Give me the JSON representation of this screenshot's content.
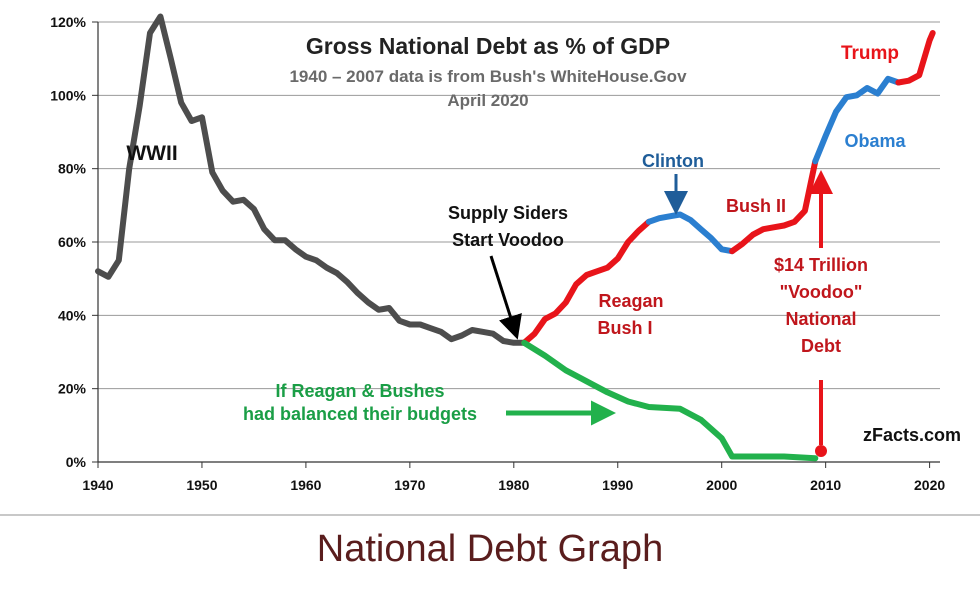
{
  "chart_data": {
    "type": "line",
    "title": "Gross National Debt  as % of GDP",
    "subtitle": "1940 – 2007 data is from Bush's WhiteHouse.Gov",
    "subtitle2": "April 2020",
    "xlabel": "",
    "ylabel": "",
    "xlim": [
      1940,
      2021
    ],
    "ylim": [
      0,
      120
    ],
    "x_ticks": [
      1940,
      1950,
      1960,
      1970,
      1980,
      1990,
      2000,
      2010,
      2020
    ],
    "x_tick_labels": [
      "1940",
      "1950",
      "1960",
      "1970",
      "1980",
      "1990",
      "2000",
      "2010",
      "2020"
    ],
    "y_ticks": [
      0,
      20,
      40,
      60,
      80,
      100,
      120
    ],
    "y_tick_labels": [
      "0%",
      "20%",
      "40%",
      "60%",
      "80%",
      "100%",
      "120%"
    ],
    "grid": "horizontal",
    "series": [
      {
        "color": "#4d4d4d",
        "points": [
          [
            1940,
            52
          ],
          [
            1941,
            50.5
          ],
          [
            1942,
            55
          ],
          [
            1943,
            80
          ],
          [
            1944,
            97
          ],
          [
            1945,
            117
          ],
          [
            1946,
            121.5
          ],
          [
            1947,
            110
          ],
          [
            1948,
            98
          ],
          [
            1949,
            93
          ],
          [
            1950,
            94
          ],
          [
            1951,
            79
          ],
          [
            1952,
            74
          ],
          [
            1953,
            71
          ],
          [
            1954,
            71.5
          ],
          [
            1955,
            69
          ],
          [
            1956,
            63.5
          ],
          [
            1957,
            60.5
          ],
          [
            1958,
            60.5
          ],
          [
            1959,
            58
          ],
          [
            1960,
            56
          ],
          [
            1961,
            55
          ],
          [
            1962,
            53
          ],
          [
            1963,
            51.5
          ],
          [
            1964,
            49
          ],
          [
            1965,
            46
          ],
          [
            1966,
            43.5
          ],
          [
            1967,
            41.5
          ],
          [
            1968,
            42
          ],
          [
            1969,
            38.5
          ],
          [
            1970,
            37.5
          ],
          [
            1971,
            37.5
          ],
          [
            1972,
            36.5
          ],
          [
            1973,
            35.5
          ],
          [
            1974,
            33.5
          ],
          [
            1975,
            34.5
          ],
          [
            1976,
            36
          ],
          [
            1977,
            35.5
          ],
          [
            1978,
            35
          ],
          [
            1979,
            33
          ],
          [
            1980,
            32.5
          ],
          [
            1981,
            32.5
          ]
        ]
      },
      {
        "color": "#e8141a",
        "points": [
          [
            1981,
            32.5
          ],
          [
            1982,
            35
          ],
          [
            1983,
            39
          ],
          [
            1984,
            40.5
          ],
          [
            1985,
            43.5
          ],
          [
            1986,
            48.5
          ],
          [
            1987,
            51
          ],
          [
            1988,
            52
          ],
          [
            1989,
            53
          ],
          [
            1990,
            55.5
          ],
          [
            1991,
            60
          ],
          [
            1992,
            63
          ],
          [
            1993,
            65.5
          ]
        ]
      },
      {
        "color": "#2b7fd0",
        "points": [
          [
            1993,
            65.5
          ],
          [
            1994,
            66.5
          ],
          [
            1995,
            67
          ],
          [
            1996,
            67.5
          ],
          [
            1997,
            66
          ],
          [
            1998,
            63.5
          ],
          [
            1999,
            61
          ],
          [
            2000,
            58
          ],
          [
            2001,
            57.5
          ]
        ]
      },
      {
        "color": "#e8141a",
        "points": [
          [
            2001,
            57.5
          ],
          [
            2002,
            59.5
          ],
          [
            2003,
            62
          ],
          [
            2004,
            63.5
          ],
          [
            2005,
            64
          ],
          [
            2006,
            64.5
          ],
          [
            2007,
            65.5
          ],
          [
            2008,
            68.5
          ],
          [
            2009,
            82
          ]
        ]
      },
      {
        "color": "#2b7fd0",
        "points": [
          [
            2009,
            82
          ],
          [
            2010,
            89
          ],
          [
            2011,
            95.5
          ],
          [
            2012,
            99.5
          ],
          [
            2013,
            100
          ],
          [
            2014,
            102
          ],
          [
            2015,
            100.5
          ],
          [
            2016,
            104.5
          ],
          [
            2017,
            103.5
          ]
        ]
      },
      {
        "color": "#e8141a",
        "points": [
          [
            2017,
            103.5
          ],
          [
            2018,
            104
          ],
          [
            2019,
            105.5
          ],
          [
            2020,
            115
          ],
          [
            2020.3,
            117
          ]
        ]
      },
      {
        "color": "#22b14c",
        "points": [
          [
            1981,
            32.5
          ],
          [
            1983,
            29
          ],
          [
            1985,
            25
          ],
          [
            1987,
            22
          ],
          [
            1989,
            19
          ],
          [
            1991,
            16.5
          ],
          [
            1993,
            15
          ],
          [
            1996,
            14.5
          ],
          [
            1998,
            11.5
          ],
          [
            2000,
            6.5
          ],
          [
            2001,
            1.5
          ],
          [
            2003,
            1.5
          ],
          [
            2006,
            1.5
          ],
          [
            2009,
            1
          ]
        ]
      }
    ],
    "annotations": {
      "wwii": "WWII",
      "supply_siders_1": "Supply Siders",
      "supply_siders_2": "Start Voodoo",
      "clinton": "Clinton",
      "reagan": "Reagan",
      "bush1": "Bush I",
      "bush2": "Bush II",
      "obama": "Obama",
      "trump": "Trump",
      "voodoo_1": "$14 Trillion",
      "voodoo_2": "\"Voodoo\"",
      "voodoo_3": "National",
      "voodoo_4": "Debt",
      "balanced_1": "If Reagan & Bushes",
      "balanced_2": "had balanced their budgets",
      "source": "zFacts.com"
    },
    "colors": {
      "gray": "#4d4d4d",
      "red": "#e8141a",
      "blue": "#2b7fd0",
      "green": "#22b14c",
      "dark_red": "#c0161c",
      "dark_blue": "#1f5d99",
      "dark_green": "#1a9e46"
    }
  },
  "caption": "National Debt Graph"
}
